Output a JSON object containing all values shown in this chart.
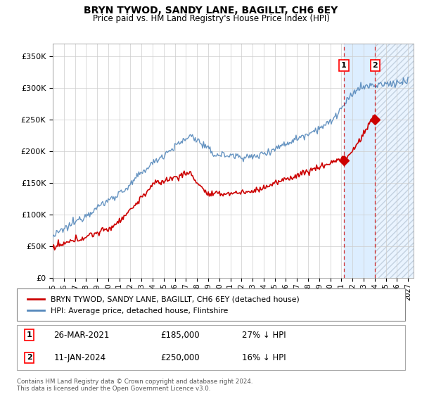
{
  "title": "BRYN TYWOD, SANDY LANE, BAGILLT, CH6 6EY",
  "subtitle": "Price paid vs. HM Land Registry's House Price Index (HPI)",
  "ylabel_ticks": [
    "£0",
    "£50K",
    "£100K",
    "£150K",
    "£200K",
    "£250K",
    "£300K",
    "£350K"
  ],
  "ytick_values": [
    0,
    50000,
    100000,
    150000,
    200000,
    250000,
    300000,
    350000
  ],
  "ylim": [
    0,
    370000
  ],
  "xlim_start": 1995.0,
  "xlim_end": 2027.5,
  "hpi_color": "#5588bb",
  "price_color": "#cc0000",
  "vline_color": "#cc0000",
  "sale1_x": 2021.23,
  "sale1_y": 185000,
  "sale2_x": 2024.03,
  "sale2_y": 250000,
  "legend_price_label": "BRYN TYWOD, SANDY LANE, BAGILLT, CH6 6EY (detached house)",
  "legend_hpi_label": "HPI: Average price, detached house, Flintshire",
  "footer": "Contains HM Land Registry data © Crown copyright and database right 2024.\nThis data is licensed under the Open Government Licence v3.0.",
  "bg_blue_color": "#ddeeff",
  "grid_color": "#cccccc",
  "xtick_years": [
    1995,
    1996,
    1997,
    1998,
    1999,
    2000,
    2001,
    2002,
    2003,
    2004,
    2005,
    2006,
    2007,
    2008,
    2009,
    2010,
    2011,
    2012,
    2013,
    2014,
    2015,
    2016,
    2017,
    2018,
    2019,
    2020,
    2021,
    2022,
    2023,
    2024,
    2025,
    2026,
    2027
  ]
}
